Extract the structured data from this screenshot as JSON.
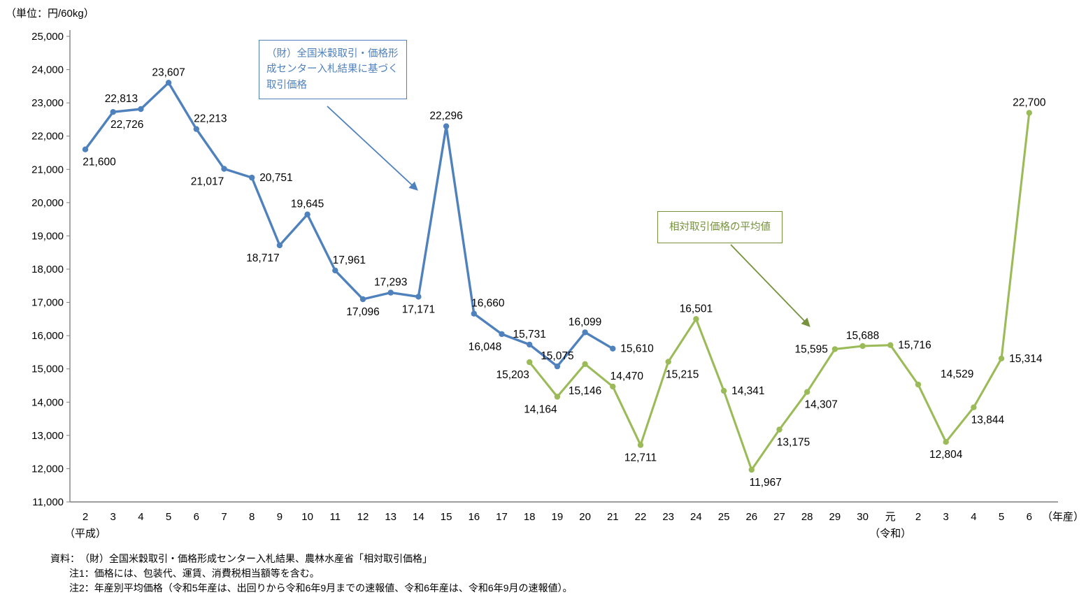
{
  "chart_data": {
    "type": "line",
    "unit_label": "（単位：円/60kg）",
    "x_axis_suffix": "（年産）",
    "y_axis": {
      "min": 11000,
      "max": 25000,
      "step": 1000
    },
    "grid": false,
    "categories": [
      "2",
      "3",
      "4",
      "5",
      "6",
      "7",
      "8",
      "9",
      "10",
      "11",
      "12",
      "13",
      "14",
      "15",
      "16",
      "17",
      "18",
      "19",
      "20",
      "21",
      "22",
      "23",
      "24",
      "25",
      "26",
      "27",
      "28",
      "29",
      "30",
      "元",
      "2",
      "3",
      "4",
      "5",
      "6"
    ],
    "era_labels": [
      {
        "index": 0,
        "label": "（平成）"
      },
      {
        "index": 29,
        "label": "（令和）"
      }
    ],
    "series": [
      {
        "name": "（財）全国米穀取引・価格形成センター入札結果に基づく取引価格",
        "color": "#4F81BD",
        "stroke_width": 3.4,
        "points": [
          {
            "ci": 0,
            "v": 21600,
            "label": "21,600",
            "pos": "below-right"
          },
          {
            "ci": 1,
            "v": 22726,
            "label": "22,726",
            "pos": "below-right"
          },
          {
            "ci": 2,
            "v": 22813,
            "label": "22,813",
            "pos": "above-left"
          },
          {
            "ci": 3,
            "v": 23607,
            "label": "23,607",
            "pos": "above"
          },
          {
            "ci": 4,
            "v": 22213,
            "label": "22,213",
            "pos": "above-right"
          },
          {
            "ci": 5,
            "v": 21017,
            "label": "21,017",
            "pos": "below-left"
          },
          {
            "ci": 6,
            "v": 20751,
            "label": "20,751",
            "pos": "right"
          },
          {
            "ci": 7,
            "v": 18717,
            "label": "18,717",
            "pos": "below-left"
          },
          {
            "ci": 8,
            "v": 19645,
            "label": "19,645",
            "pos": "above"
          },
          {
            "ci": 9,
            "v": 17961,
            "label": "17,961",
            "pos": "above-right"
          },
          {
            "ci": 10,
            "v": 17096,
            "label": "17,096",
            "pos": "below"
          },
          {
            "ci": 11,
            "v": 17293,
            "label": "17,293",
            "pos": "above"
          },
          {
            "ci": 12,
            "v": 17171,
            "label": "17,171",
            "pos": "below"
          },
          {
            "ci": 13,
            "v": 22296,
            "label": "22,296",
            "pos": "above"
          },
          {
            "ci": 14,
            "v": 16660,
            "label": "16,660",
            "pos": "above-right"
          },
          {
            "ci": 15,
            "v": 16048,
            "label": "16,048",
            "pos": "below-left"
          },
          {
            "ci": 16,
            "v": 15731,
            "label": "15,731",
            "pos": "above"
          },
          {
            "ci": 17,
            "v": 15075,
            "label": "15,075",
            "pos": "above"
          },
          {
            "ci": 18,
            "v": 16099,
            "label": "16,099",
            "pos": "above"
          },
          {
            "ci": 19,
            "v": 15610,
            "label": "15,610",
            "pos": "right"
          }
        ]
      },
      {
        "name": "相対取引価格の平均値",
        "color": "#9BBB59",
        "stroke_width": 3.1,
        "points": [
          {
            "ci": 16,
            "v": 15203,
            "label": "15,203",
            "pos": "below-left"
          },
          {
            "ci": 17,
            "v": 14164,
            "label": "14,164",
            "pos": "below-left"
          },
          {
            "ci": 18,
            "v": 15146,
            "label": "15,146",
            "pos": "below-far"
          },
          {
            "ci": 19,
            "v": 14470,
            "label": "14,470",
            "pos": "above-right"
          },
          {
            "ci": 20,
            "v": 12711,
            "label": "12,711",
            "pos": "below"
          },
          {
            "ci": 21,
            "v": 15215,
            "label": "15,215",
            "pos": "below-right"
          },
          {
            "ci": 22,
            "v": 16501,
            "label": "16,501",
            "pos": "above"
          },
          {
            "ci": 23,
            "v": 14341,
            "label": "14,341",
            "pos": "right"
          },
          {
            "ci": 24,
            "v": 11967,
            "label": "11,967",
            "pos": "below-right"
          },
          {
            "ci": 25,
            "v": 13175,
            "label": "13,175",
            "pos": "below-right"
          },
          {
            "ci": 26,
            "v": 14307,
            "label": "14,307",
            "pos": "below-right"
          },
          {
            "ci": 27,
            "v": 15595,
            "label": "15,595",
            "pos": "left"
          },
          {
            "ci": 28,
            "v": 15688,
            "label": "15,688",
            "pos": "above"
          },
          {
            "ci": 29,
            "v": 15716,
            "label": "15,716",
            "pos": "right"
          },
          {
            "ci": 30,
            "v": 14529,
            "label": "14,529",
            "pos": "right",
            "dx": 32,
            "dy": -10
          },
          {
            "ci": 31,
            "v": 12804,
            "label": "12,804",
            "pos": "below"
          },
          {
            "ci": 32,
            "v": 13844,
            "label": "13,844",
            "pos": "below-right"
          },
          {
            "ci": 33,
            "v": 15314,
            "label": "15,314",
            "pos": "right"
          },
          {
            "ci": 34,
            "v": 22700,
            "label": "22,700",
            "pos": "above"
          }
        ]
      }
    ],
    "annotations": [
      {
        "text": "（財）全国米穀取引・価格形成センター入札結果に基づく取引価格",
        "color": "#4F81BD"
      },
      {
        "text": "相対取引価格の平均値",
        "color": "#76923C"
      }
    ]
  },
  "notes": {
    "source": "資料：　（財）全国米穀取引・価格形成センター入札結果、農林水産省「相対取引価格」",
    "note1": "注1：価格には、包装代、運賃、消費税相当額等を含む。",
    "note2": "注2：年産別平均価格（令和5年産は、出回りから令和6年9月までの速報値、令和6年産は、令和6年9月の速報値）。"
  }
}
